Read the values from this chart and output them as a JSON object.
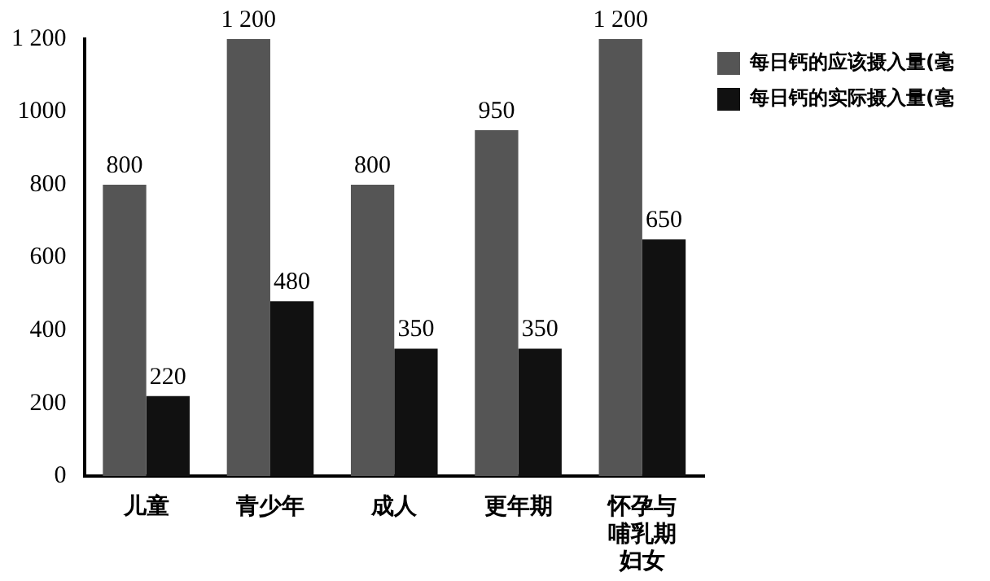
{
  "chart_data": {
    "type": "bar",
    "categories": [
      "儿童",
      "青少年",
      "成人",
      "更年期",
      "怀孕与哺乳期妇女"
    ],
    "series": [
      {
        "name": "每日钙的应该摄入量(毫",
        "color": "#555555",
        "values": [
          800,
          1200,
          800,
          950,
          1200
        ],
        "value_labels": [
          "800",
          "1 200",
          "800",
          "950",
          "1 200"
        ]
      },
      {
        "name": "每日钙的实际摄入量(毫",
        "color": "#111111",
        "values": [
          220,
          480,
          350,
          350,
          650
        ],
        "value_labels": [
          "220",
          "480",
          "350",
          "350",
          "650"
        ]
      }
    ],
    "ylim": [
      0,
      1200
    ],
    "yticks": [
      0,
      200,
      400,
      600,
      800,
      1000,
      {
        "value": 1200,
        "label": "1 200"
      }
    ],
    "grid": false,
    "legend": "right"
  }
}
